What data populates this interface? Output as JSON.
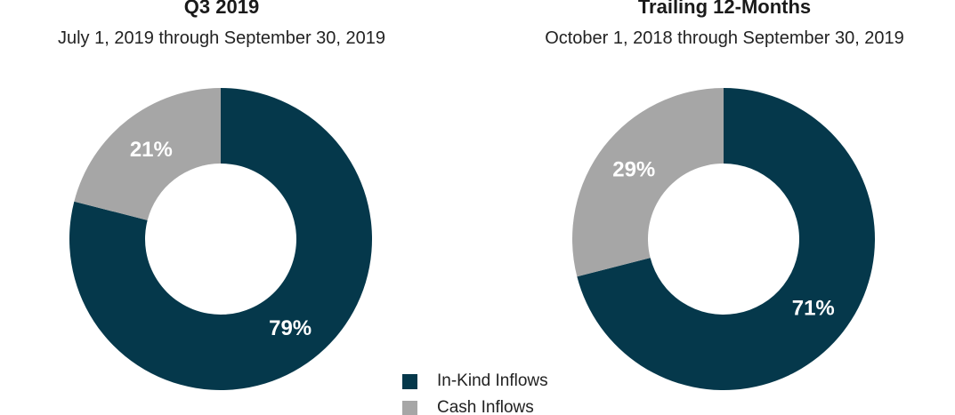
{
  "colors": {
    "in_kind": "#05384b",
    "cash": "#a6a6a6"
  },
  "legend": [
    {
      "label": "In-Kind Inflows",
      "color": "#05384b"
    },
    {
      "label": "Cash Inflows",
      "color": "#a6a6a6"
    }
  ],
  "chart_data": [
    {
      "type": "pie",
      "title": "Q3 2019",
      "subtitle": "July 1, 2019 through September 30, 2019",
      "categories": [
        "In-Kind Inflows",
        "Cash Inflows"
      ],
      "values": [
        79,
        21
      ],
      "labels": [
        "79%",
        "21%"
      ],
      "colors": [
        "#05384b",
        "#a6a6a6"
      ]
    },
    {
      "type": "pie",
      "title": "Trailing 12-Months",
      "subtitle": "October 1, 2018 through September 30, 2019",
      "categories": [
        "In-Kind Inflows",
        "Cash Inflows"
      ],
      "values": [
        71,
        29
      ],
      "labels": [
        "71%",
        "29%"
      ],
      "colors": [
        "#05384b",
        "#a6a6a6"
      ]
    }
  ]
}
